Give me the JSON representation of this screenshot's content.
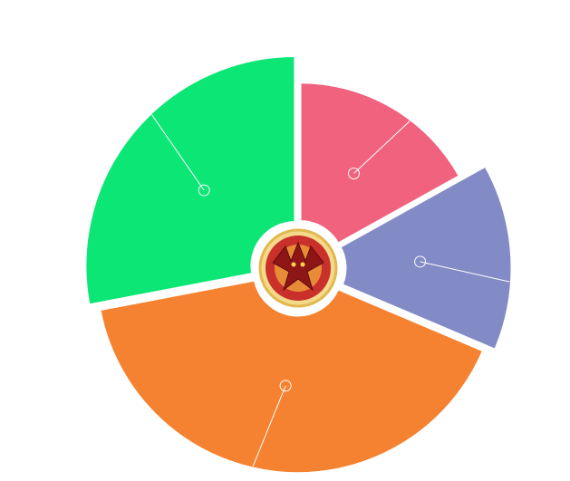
{
  "chart_data": {
    "type": "pie",
    "variant": "rose",
    "labels_shown": false,
    "center_image": "dragon-emblem",
    "slices": [
      {
        "value": 55,
        "radius": 0.87,
        "color": "#F0627E"
      },
      {
        "value": 47,
        "radius": 1.0,
        "color": "#828BC6"
      },
      {
        "value": 132,
        "radius": 0.96,
        "color": "#F58230"
      },
      {
        "value": 91,
        "radius": 1.0,
        "color": "#0BE675"
      }
    ],
    "start_angle_deg": 0,
    "direction": "clockwise"
  }
}
